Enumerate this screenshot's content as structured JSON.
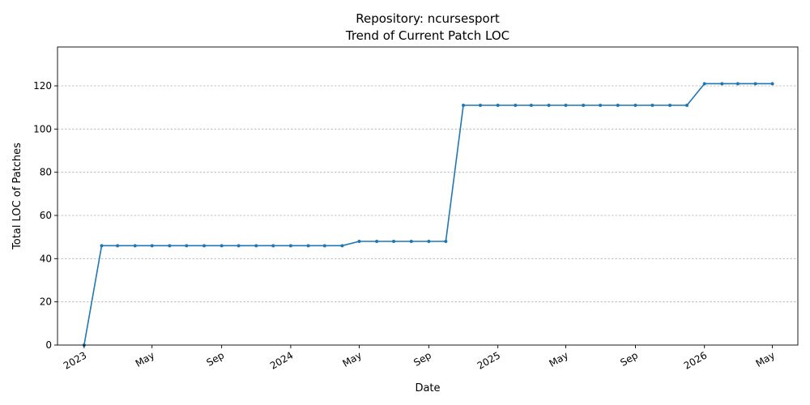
{
  "chart_data": {
    "type": "line",
    "title": "Repository: ncursesport",
    "subtitle": "Trend of Current Patch LOC",
    "xlabel": "Date",
    "ylabel": "Total LOC of Patches",
    "ylim": [
      0,
      138
    ],
    "xlim": [
      "2022-11-15",
      "2026-06-15"
    ],
    "grid": "horizontal dashed",
    "line_color": "#1f77b4",
    "yticks": [
      0,
      20,
      40,
      60,
      80,
      100,
      120
    ],
    "xticks": [
      {
        "date": "2023-01-01",
        "label": "2023"
      },
      {
        "date": "2023-05-01",
        "label": "May"
      },
      {
        "date": "2023-09-01",
        "label": "Sep"
      },
      {
        "date": "2024-01-01",
        "label": "2024"
      },
      {
        "date": "2024-05-01",
        "label": "May"
      },
      {
        "date": "2024-09-01",
        "label": "Sep"
      },
      {
        "date": "2025-01-01",
        "label": "2025"
      },
      {
        "date": "2025-05-01",
        "label": "May"
      },
      {
        "date": "2025-09-01",
        "label": "Sep"
      },
      {
        "date": "2026-01-01",
        "label": "2026"
      },
      {
        "date": "2026-05-01",
        "label": "May"
      }
    ],
    "series": [
      {
        "x": [
          "2023-01-01",
          "2023-02-01",
          "2023-03-01",
          "2023-04-01",
          "2023-05-01",
          "2023-06-01",
          "2023-07-01",
          "2023-08-01",
          "2023-09-01",
          "2023-10-01",
          "2023-11-01",
          "2023-12-01",
          "2024-01-01",
          "2024-02-01",
          "2024-03-01",
          "2024-04-01",
          "2024-05-01",
          "2024-06-01",
          "2024-07-01",
          "2024-08-01",
          "2024-09-01",
          "2024-10-01",
          "2024-11-01",
          "2024-12-01",
          "2025-01-01",
          "2025-02-01",
          "2025-03-01",
          "2025-04-01",
          "2025-05-01",
          "2025-06-01",
          "2025-07-01",
          "2025-08-01",
          "2025-09-01",
          "2025-10-01",
          "2025-11-01",
          "2025-12-01",
          "2026-01-01",
          "2026-02-01",
          "2026-03-01",
          "2026-04-01",
          "2026-05-01"
        ],
        "values": [
          0,
          46,
          46,
          46,
          46,
          46,
          46,
          46,
          46,
          46,
          46,
          46,
          46,
          46,
          46,
          46,
          48,
          48,
          48,
          48,
          48,
          48,
          111,
          111,
          111,
          111,
          111,
          111,
          111,
          111,
          111,
          111,
          111,
          111,
          111,
          111,
          121,
          121,
          121,
          121,
          121
        ]
      }
    ]
  }
}
